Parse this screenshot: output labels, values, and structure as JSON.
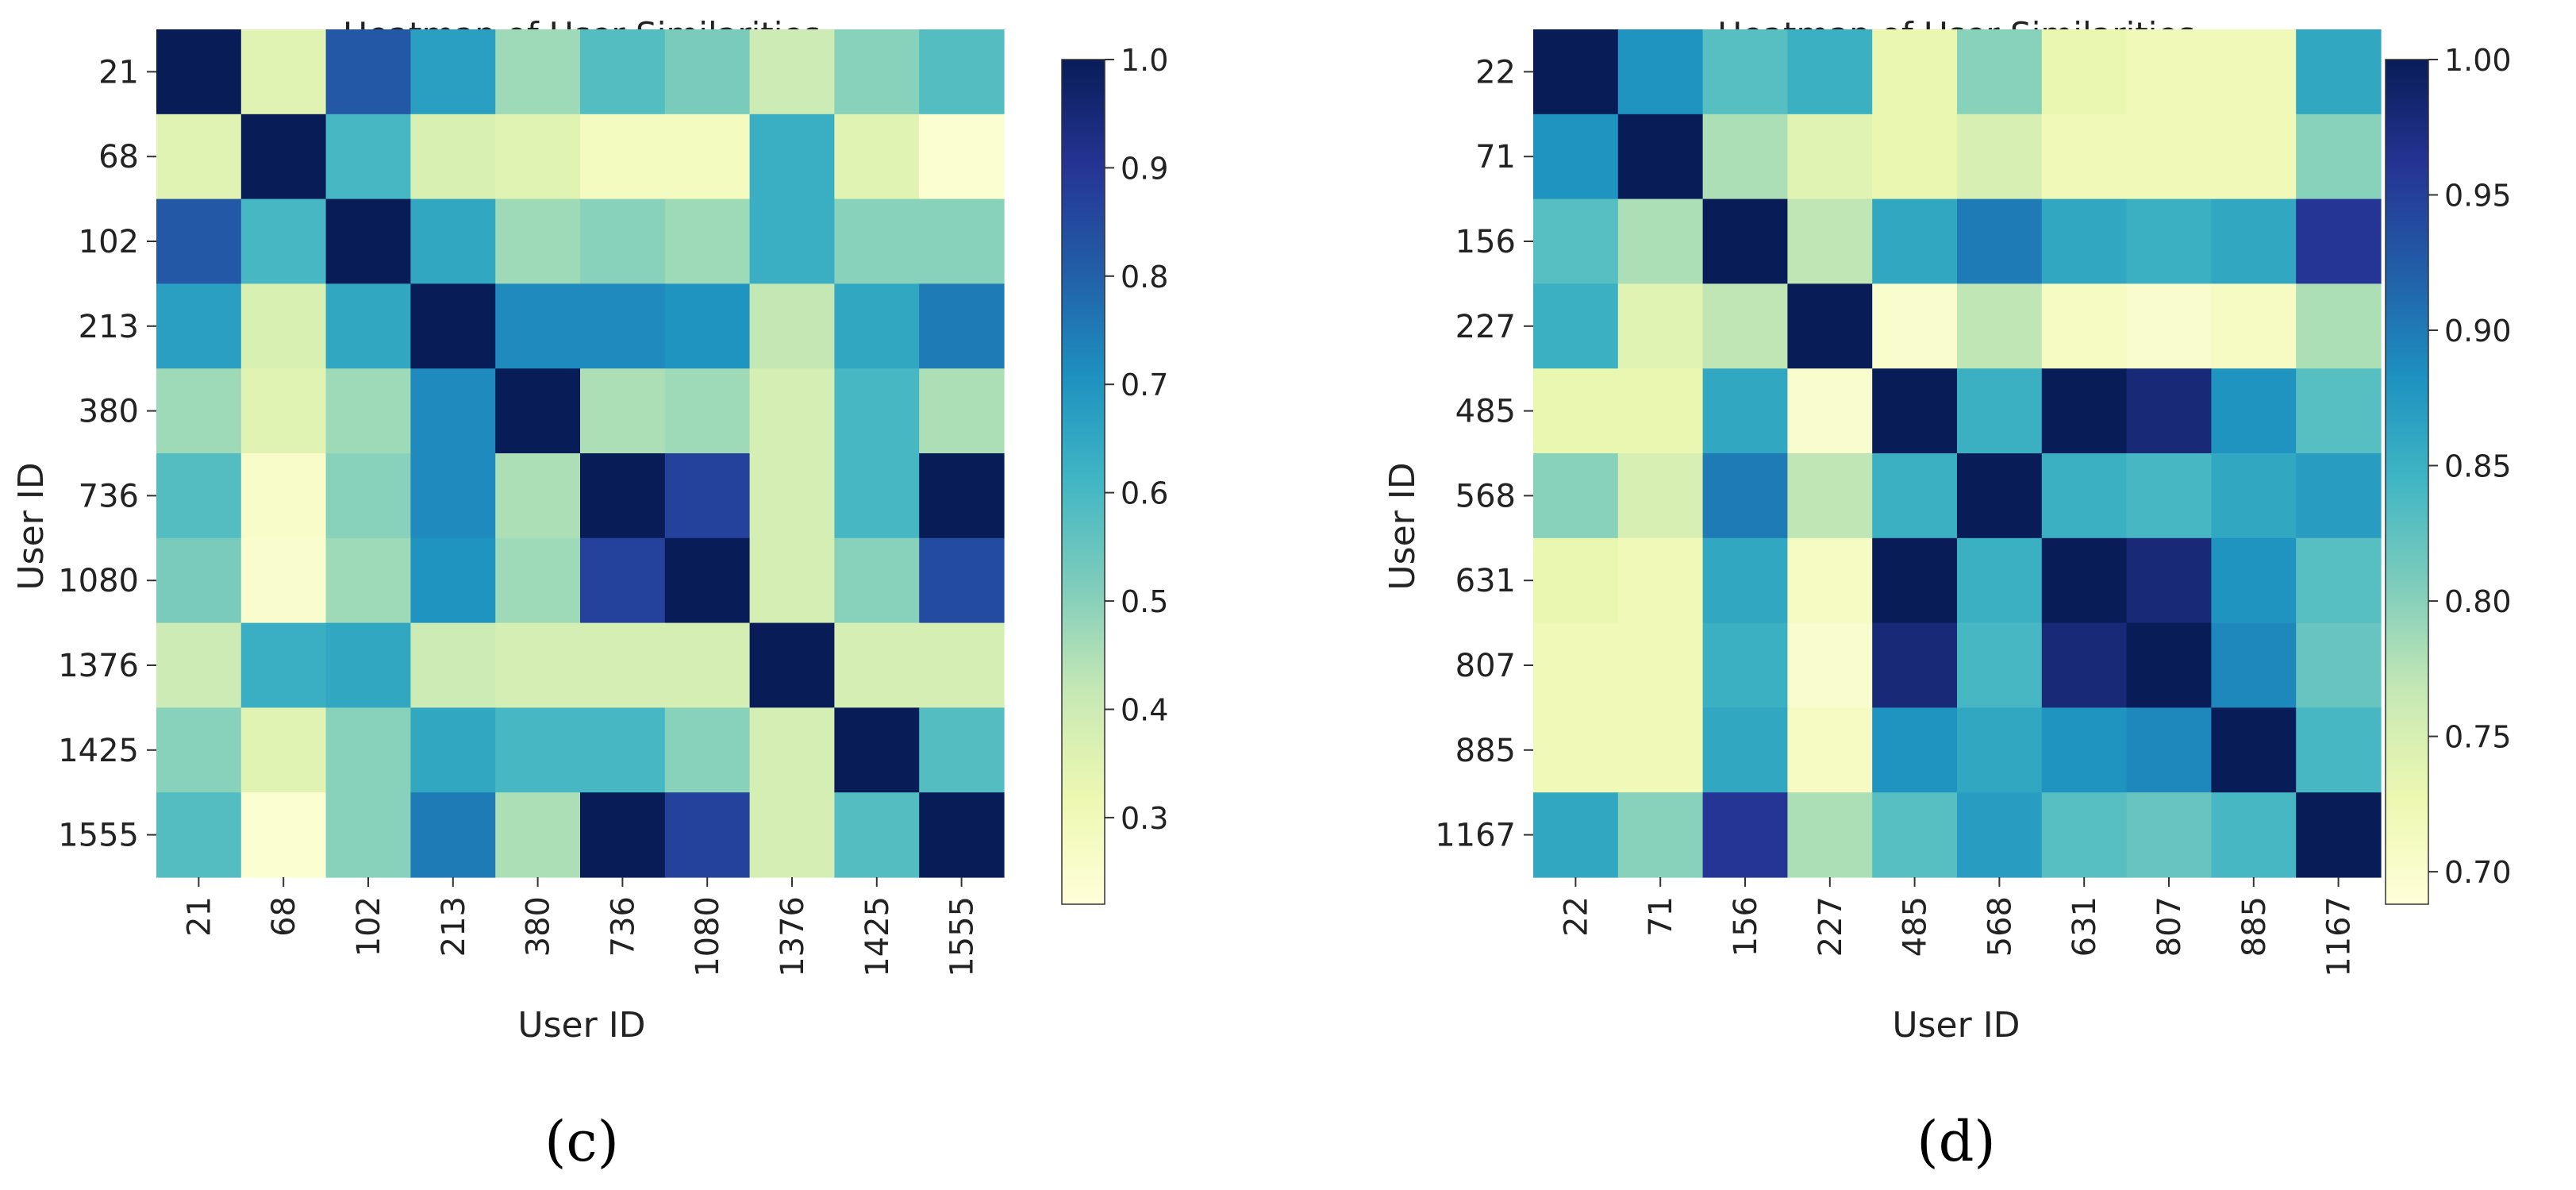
{
  "chart_data": [
    {
      "type": "heatmap",
      "panel_label": "(c)",
      "title": "Heatmap of User Similarities",
      "xlabel": "User ID",
      "ylabel": "User ID",
      "labels": [
        "21",
        "68",
        "102",
        "213",
        "380",
        "736",
        "1080",
        "1376",
        "1425",
        "1555"
      ],
      "colorbar": {
        "min": 0.22,
        "max": 1.0,
        "ticks": [
          "0.3",
          "0.4",
          "0.5",
          "0.6",
          "0.7",
          "0.8",
          "0.9",
          "1.0"
        ]
      },
      "values": [
        [
          1.0,
          0.35,
          0.82,
          0.67,
          0.47,
          0.58,
          0.52,
          0.4,
          0.5,
          0.58
        ],
        [
          0.35,
          1.0,
          0.6,
          0.37,
          0.35,
          0.28,
          0.28,
          0.63,
          0.35,
          0.24
        ],
        [
          0.82,
          0.6,
          1.0,
          0.65,
          0.47,
          0.5,
          0.47,
          0.63,
          0.5,
          0.5
        ],
        [
          0.67,
          0.37,
          0.65,
          1.0,
          0.72,
          0.72,
          0.7,
          0.42,
          0.65,
          0.75
        ],
        [
          0.47,
          0.35,
          0.47,
          0.72,
          1.0,
          0.45,
          0.47,
          0.38,
          0.6,
          0.45
        ],
        [
          0.58,
          0.26,
          0.5,
          0.72,
          0.45,
          1.0,
          0.87,
          0.38,
          0.6,
          1.0
        ],
        [
          0.52,
          0.25,
          0.47,
          0.7,
          0.47,
          0.87,
          1.0,
          0.38,
          0.5,
          0.85
        ],
        [
          0.4,
          0.63,
          0.65,
          0.4,
          0.38,
          0.38,
          0.38,
          1.0,
          0.38,
          0.38
        ],
        [
          0.5,
          0.35,
          0.5,
          0.65,
          0.6,
          0.6,
          0.5,
          0.38,
          1.0,
          0.58
        ],
        [
          0.58,
          0.24,
          0.5,
          0.75,
          0.45,
          1.0,
          0.87,
          0.38,
          0.58,
          1.0
        ]
      ]
    },
    {
      "type": "heatmap",
      "panel_label": "(d)",
      "title": "Heatmap of User Similarities",
      "xlabel": "User ID",
      "ylabel": "User ID",
      "labels": [
        "22",
        "71",
        "156",
        "227",
        "485",
        "568",
        "631",
        "807",
        "885",
        "1167"
      ],
      "colorbar": {
        "min": 0.688,
        "max": 1.0,
        "ticks": [
          "0.70",
          "0.75",
          "0.80",
          "0.85",
          "0.90",
          "0.95",
          "1.00"
        ]
      },
      "values": [
        [
          1.0,
          0.88,
          0.83,
          0.85,
          0.73,
          0.8,
          0.73,
          0.72,
          0.72,
          0.86
        ],
        [
          0.88,
          1.0,
          0.78,
          0.74,
          0.73,
          0.75,
          0.72,
          0.72,
          0.72,
          0.8
        ],
        [
          0.83,
          0.78,
          1.0,
          0.77,
          0.86,
          0.9,
          0.86,
          0.85,
          0.86,
          0.96
        ],
        [
          0.85,
          0.74,
          0.77,
          1.0,
          0.7,
          0.77,
          0.71,
          0.7,
          0.71,
          0.78
        ],
        [
          0.73,
          0.73,
          0.86,
          0.7,
          1.0,
          0.85,
          1.0,
          0.98,
          0.88,
          0.83
        ],
        [
          0.8,
          0.75,
          0.9,
          0.77,
          0.85,
          1.0,
          0.85,
          0.84,
          0.86,
          0.87
        ],
        [
          0.73,
          0.72,
          0.86,
          0.71,
          1.0,
          0.85,
          1.0,
          0.98,
          0.88,
          0.83
        ],
        [
          0.72,
          0.72,
          0.85,
          0.7,
          0.98,
          0.84,
          0.98,
          1.0,
          0.89,
          0.82
        ],
        [
          0.72,
          0.72,
          0.86,
          0.71,
          0.88,
          0.86,
          0.88,
          0.89,
          1.0,
          0.84
        ],
        [
          0.86,
          0.8,
          0.96,
          0.78,
          0.83,
          0.87,
          0.83,
          0.82,
          0.84,
          1.0
        ]
      ]
    }
  ]
}
